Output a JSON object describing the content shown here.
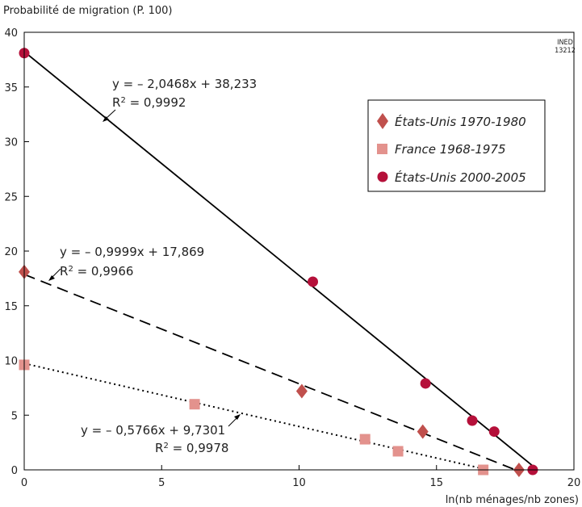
{
  "chart_data": {
    "type": "scatter",
    "ylabel": "Probabilité de migration (P. 100)",
    "xlabel": "ln(nb ménages/nb zones)",
    "xlim": [
      0,
      20
    ],
    "ylim": [
      0,
      40
    ],
    "x_ticks": [
      "0",
      "5",
      "10",
      "15",
      "20"
    ],
    "y_ticks": [
      "0",
      "5",
      "10",
      "15",
      "20",
      "25",
      "30",
      "35",
      "40"
    ],
    "credit": [
      "INED",
      "13212"
    ],
    "legend_position": "top-right",
    "series": [
      {
        "name": "États-Unis 1970-1980",
        "marker": "diamond",
        "color": "#c0504d",
        "line_style": "dashed",
        "x": [
          0,
          10.1,
          14.5,
          18.0
        ],
        "y": [
          18.1,
          7.2,
          3.5,
          0.0
        ],
        "fit": {
          "slope": -0.9999,
          "intercept": 17.869,
          "x_end": 17.87
        },
        "equation": "y = – 0,9999x + 17,869",
        "r2_prefix": "R",
        "r2_value": " = 0,9966"
      },
      {
        "name": "France 1968-1975",
        "marker": "square",
        "color": "#e3928d",
        "line_style": "dotted",
        "x": [
          0,
          6.2,
          12.4,
          13.6,
          16.7
        ],
        "y": [
          9.6,
          6.0,
          2.8,
          1.7,
          0.0
        ],
        "fit": {
          "slope": -0.5766,
          "intercept": 9.7301,
          "x_end": 16.87
        },
        "equation": "y = – 0,5766x + 9,7301",
        "r2_prefix": "R",
        "r2_value": " = 0,9978"
      },
      {
        "name": "États-Unis 2000-2005",
        "marker": "circle",
        "color": "#b5103a",
        "line_style": "solid",
        "x": [
          0,
          10.5,
          14.6,
          16.3,
          17.1,
          18.5
        ],
        "y": [
          38.1,
          17.2,
          7.9,
          4.5,
          3.5,
          0.0
        ],
        "fit": {
          "slope": -2.0468,
          "intercept": 38.233,
          "x_end": 18.68
        },
        "equation": "y = – 2,0468x + 38,233",
        "r2_prefix": "R",
        "r2_value": " = 0,9992"
      }
    ]
  }
}
